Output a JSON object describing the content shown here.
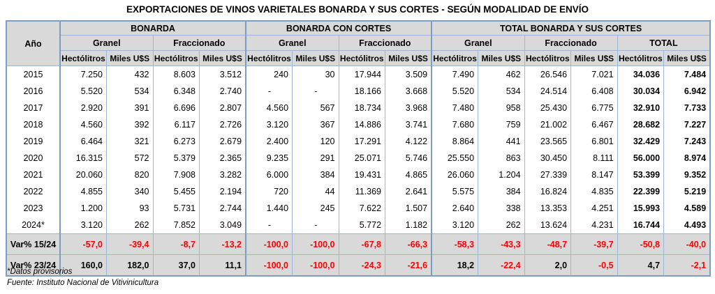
{
  "chart_data": {
    "type": "table",
    "title": "EXPORTACIONES DE VINOS VARIETALES BONARDA Y SUS CORTES - SEGÚN MODALIDAD DE ENVÍO",
    "row_header": "Año",
    "groups": [
      "BONARDA",
      "BONARDA CON CORTES",
      "TOTAL BONARDA Y SUS CORTES"
    ],
    "subgroups": [
      "Granel",
      "Fraccionado",
      "Granel",
      "Fraccionado",
      "Granel",
      "Fraccionado",
      "TOTAL"
    ],
    "units": {
      "hl": "Hectólitros",
      "usd": "Miles U$S"
    },
    "rows": [
      {
        "label": "2015",
        "kind": "data",
        "values": [
          "7.250",
          "432",
          "8.603",
          "3.512",
          "240",
          "30",
          "17.944",
          "3.509",
          "7.490",
          "462",
          "26.546",
          "7.021",
          "34.036",
          "7.484"
        ]
      },
      {
        "label": "2016",
        "kind": "data",
        "values": [
          "5.520",
          "534",
          "6.348",
          "2.740",
          "-",
          "-",
          "18.166",
          "3.668",
          "5.520",
          "534",
          "24.514",
          "6.408",
          "30.034",
          "6.942"
        ]
      },
      {
        "label": "2017",
        "kind": "data",
        "values": [
          "2.920",
          "391",
          "6.696",
          "2.807",
          "4.560",
          "567",
          "18.734",
          "3.968",
          "7.480",
          "958",
          "25.430",
          "6.775",
          "32.910",
          "7.733"
        ]
      },
      {
        "label": "2018",
        "kind": "data",
        "values": [
          "4.560",
          "392",
          "6.117",
          "2.726",
          "3.120",
          "367",
          "14.886",
          "3.741",
          "7.680",
          "759",
          "21.002",
          "6.467",
          "28.682",
          "7.227"
        ]
      },
      {
        "label": "2019",
        "kind": "data",
        "values": [
          "6.464",
          "321",
          "6.273",
          "2.679",
          "2.400",
          "120",
          "17.291",
          "4.122",
          "8.864",
          "441",
          "23.565",
          "6.801",
          "32.429",
          "7.243"
        ]
      },
      {
        "label": "2020",
        "kind": "data",
        "values": [
          "16.315",
          "572",
          "5.379",
          "2.365",
          "9.235",
          "291",
          "25.071",
          "5.746",
          "25.550",
          "863",
          "30.450",
          "8.111",
          "56.000",
          "8.974"
        ]
      },
      {
        "label": "2021",
        "kind": "data",
        "values": [
          "20.060",
          "820",
          "7.908",
          "3.282",
          "6.000",
          "384",
          "19.431",
          "4.865",
          "26.060",
          "1.204",
          "27.339",
          "8.147",
          "53.399",
          "9.352"
        ]
      },
      {
        "label": "2022",
        "kind": "data",
        "values": [
          "4.855",
          "340",
          "5.455",
          "2.194",
          "720",
          "44",
          "11.369",
          "2.641",
          "5.575",
          "384",
          "16.824",
          "4.835",
          "22.399",
          "5.219"
        ]
      },
      {
        "label": "2023",
        "kind": "data",
        "values": [
          "1.200",
          "93",
          "5.731",
          "2.744",
          "1.440",
          "245",
          "7.622",
          "1.507",
          "2.640",
          "338",
          "13.353",
          "4.251",
          "15.993",
          "4.589"
        ]
      },
      {
        "label": "2024*",
        "kind": "data",
        "values": [
          "3.120",
          "262",
          "7.852",
          "3.049",
          "-",
          "-",
          "5.772",
          "1.182",
          "3.120",
          "262",
          "13.624",
          "4.231",
          "16.744",
          "4.493"
        ]
      },
      {
        "label": "Var% 15/24",
        "kind": "var",
        "values": [
          "-57,0",
          "-39,4",
          "-8,7",
          "-13,2",
          "-100,0",
          "-100,0",
          "-67,8",
          "-66,3",
          "-58,3",
          "-43,3",
          "-48,7",
          "-39,7",
          "-50,8",
          "-40,0"
        ]
      },
      {
        "label": "Var% 23/24",
        "kind": "var",
        "values": [
          "160,0",
          "182,0",
          "37,0",
          "11,1",
          "-100,0",
          "-100,0",
          "-24,3",
          "-21,6",
          "18,2",
          "-22,4",
          "2,0",
          "-0,5",
          "4,7",
          "-2,1"
        ]
      }
    ],
    "footnote": "*Datos provisorios",
    "source": "Fuente: Instituto Nacional de Vitivinicultura",
    "colors": {
      "header_bg": "#d9d9d9",
      "grid_line": "#9ab7da",
      "group_line": "#7d9ec2",
      "negative_text": "#ff0000",
      "text": "#000000"
    }
  }
}
